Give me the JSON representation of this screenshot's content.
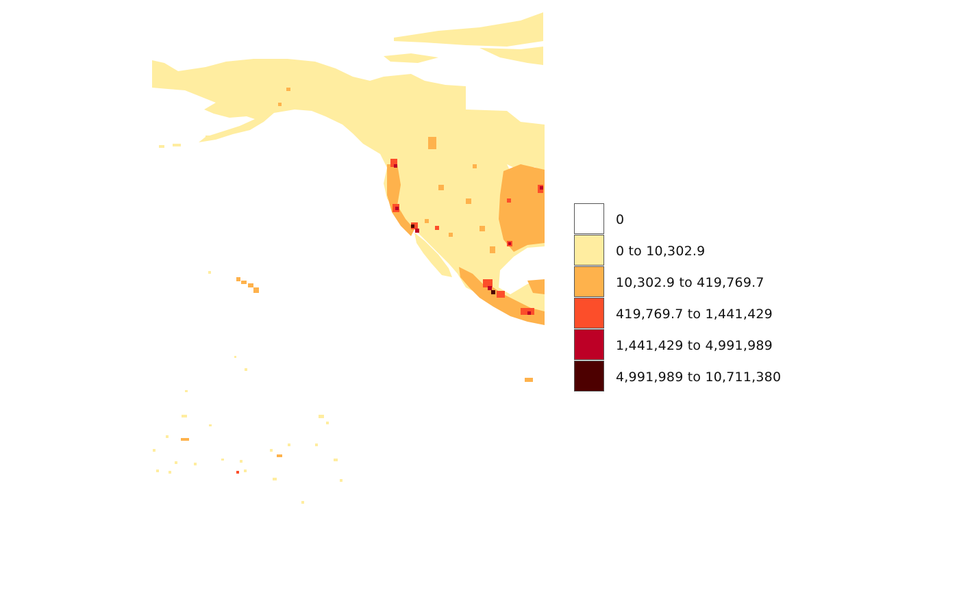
{
  "legend": {
    "items": [
      {
        "label": "0",
        "color": "#FFFFFF"
      },
      {
        "label": "0 to 10,302.9",
        "color": "#FFEDA0"
      },
      {
        "label": "10,302.9 to 419,769.7",
        "color": "#FEB24C"
      },
      {
        "label": "419,769.7 to 1,441,429",
        "color": "#FC4E2A"
      },
      {
        "label": "1,441,429 to 4,991,989",
        "color": "#BD0026"
      },
      {
        "label": "4,991,989 to 10,711,380",
        "color": "#4D0000"
      }
    ]
  }
}
